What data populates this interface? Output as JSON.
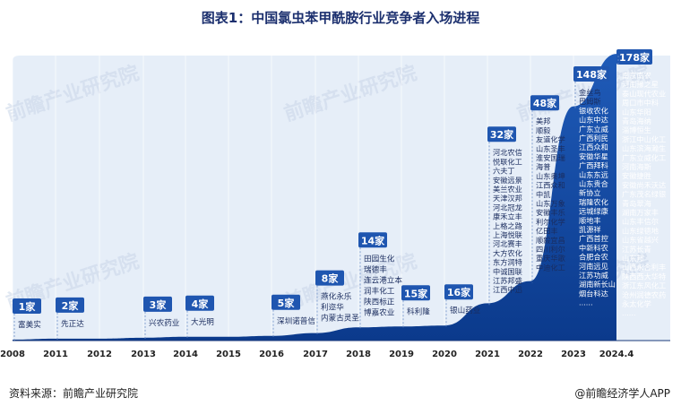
{
  "title": "图表1：中国氯虫苯甲酰胺行业竞争者入场进程",
  "source": "资料来源：前瞻产业研究院",
  "brand": "@前瞻经济学人APP",
  "watermark": "前瞻产业研究院",
  "chart_data": {
    "type": "area",
    "title": "图表1：中国氯虫苯甲酰胺行业竞争者入场进程",
    "x": [
      "2008",
      "2011",
      "2012",
      "2013",
      "2014",
      "2015",
      "2016",
      "2017",
      "2018",
      "2019",
      "2020",
      "2021",
      "2022",
      "2023",
      "2024.4"
    ],
    "counts": [
      1,
      2,
      2,
      3,
      4,
      4,
      5,
      8,
      14,
      15,
      16,
      32,
      48,
      148,
      178
    ],
    "points": [
      {
        "year": "2008",
        "count_label": "1家",
        "companies": [
          "富美实"
        ]
      },
      {
        "year": "2011",
        "count_label": "2家",
        "companies": [
          "先正达"
        ]
      },
      {
        "year": "2013",
        "count_label": "3家",
        "companies": [
          "兴农药业"
        ]
      },
      {
        "year": "2014",
        "count_label": "4家",
        "companies": [
          "大光明"
        ]
      },
      {
        "year": "2016",
        "count_label": "5家",
        "companies": [
          "深圳诺普信"
        ]
      },
      {
        "year": "2017",
        "count_label": "8家",
        "companies": [
          "燕化永乐",
          "利迩华",
          "内蒙古灵圣"
        ]
      },
      {
        "year": "2018",
        "count_label": "14家",
        "companies": [
          "田园生化",
          "瑞德丰",
          "连云港立本",
          "润丰化工",
          "陕西标正",
          "博嘉农业"
        ]
      },
      {
        "year": "2019",
        "count_label": "15家",
        "companies": [
          "科利隆"
        ]
      },
      {
        "year": "2020",
        "count_label": "16家",
        "companies": [
          "银山药业"
        ]
      },
      {
        "year": "2021",
        "count_label": "32家",
        "companies": [
          "河北农信",
          "悦联化工",
          "六夫丁",
          "安徽远景",
          "美兰农业",
          "天津汉邦",
          "河北冠龙",
          "康禾立丰",
          "上格之路",
          "上海悦联",
          "河北赛丰",
          "大方农化",
          "东方润特",
          "中诚国联",
          "江苏邦盛",
          "江西中迅"
        ]
      },
      {
        "year": "2022",
        "count_label": "48家",
        "companies": [
          "美邦",
          "顺毅",
          "友道化学",
          "山东圣丰",
          "淮安国瑞",
          "海普",
          "山东奥坤",
          "江西众和",
          "中凯",
          "山东万象",
          "安徽丰乐",
          "利尔化学",
          "亿田丰",
          "顺毅宜昌",
          "四川利尔",
          "重庆华歌",
          "中迪化工"
        ]
      },
      {
        "year": "2023",
        "count_label": "148家",
        "companies": [
          "金丝鸟",
          "巴姆斯",
          "银收农化",
          "山东中达",
          "广东立威",
          "广西利民",
          "江西众和",
          "安徽华星",
          "广西拜科",
          "山东东远",
          "山东贵合",
          "新协立",
          "瑞隆农化",
          "远城绿康",
          "顺地丰",
          "凯源祥",
          "广西首控",
          "中新科农",
          "合肥合农",
          "河南远见",
          "江苏功威",
          "湖南新长山",
          "烟台科达",
          "......"
        ]
      },
      {
        "year": "2024.4",
        "count_label": "178家",
        "companies": [
          "南京南农",
          "河南豫之星",
          "泰山现代农业",
          "周口市中科",
          "山东华阳",
          "青岛海纳",
          "淄博恒生",
          "浙江中山化工",
          "山东滨海瀚生",
          "广东立威化工",
          "河南海斯",
          "安徽捷胜",
          "安徽尚禾沃达",
          "广东茂名绿银",
          "青岛翠海",
          "湖南万家丰",
          "山东丰信尔",
          "山东绿德地",
          "山东省越兴",
          "江苏长青",
          "山东邦",
          "山西永合利丰",
          "陕西西大华特",
          "浙江东风化工",
          "沧州润德农药",
          "永太化学",
          "......"
        ]
      }
    ]
  }
}
